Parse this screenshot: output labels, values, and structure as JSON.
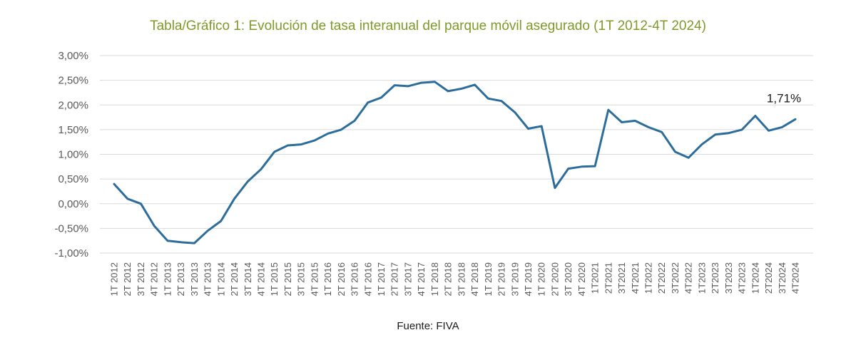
{
  "title": "Tabla/Gráfico 1: Evolución de tasa interanual del parque móvil asegurado (1T 2012-4T 2024)",
  "source": "Fuente: FIVA",
  "colors": {
    "title": "#7e9a28",
    "line": "#2d6d9b",
    "grid": "#d9d9d9",
    "axis_text": "#595959",
    "annotation": "#1a1a1a",
    "footer_text": "#1a1a1a"
  },
  "chart_data": {
    "type": "line",
    "title": "Tabla/Gráfico 1: Evolución de tasa interanual del parque móvil asegurado (1T 2012-4T 2024)",
    "categories": [
      "1T 2012",
      "2T 2012",
      "3T 2012",
      "4T 2012",
      "1T 2013",
      "2T 2013",
      "3T 2013",
      "4T 2013",
      "1T 2014",
      "2T 2014",
      "3T 2014",
      "4T 2014",
      "1T 2015",
      "2T 2015",
      "3T 2015",
      "4T 2015",
      "1T 2016",
      "2T 2016",
      "3T 2016",
      "4T 2016",
      "1T 2017",
      "2T 2017",
      "3T 2017",
      "4T 2017",
      "1T 2018",
      "2T 2018",
      "3T 2018",
      "4T 2018",
      "1T 2019",
      "2T 2019",
      "3T 2019",
      "4T 2019",
      "1T 2020",
      "2T 2020",
      "3T 2020",
      "4T 2020",
      "1T2021",
      "2T2021",
      "3T2021",
      "4T2021",
      "1T2022",
      "2T2022",
      "3T2022",
      "4T2022",
      "1T2023",
      "2T2023",
      "3T2023",
      "4T2023",
      "1T2024",
      "2T2024",
      "3T2024",
      "4T2024"
    ],
    "values": [
      0.4,
      0.1,
      0.0,
      -0.45,
      -0.75,
      -0.78,
      -0.8,
      -0.55,
      -0.35,
      0.1,
      0.45,
      0.7,
      1.05,
      1.18,
      1.2,
      1.28,
      1.42,
      1.5,
      1.68,
      2.05,
      2.15,
      2.4,
      2.38,
      2.45,
      2.47,
      2.28,
      2.33,
      2.41,
      2.13,
      2.08,
      1.85,
      1.52,
      1.57,
      0.32,
      0.71,
      0.75,
      0.76,
      1.9,
      1.65,
      1.68,
      1.55,
      1.45,
      1.05,
      0.93,
      1.2,
      1.4,
      1.43,
      1.5,
      1.78,
      1.48,
      1.55,
      1.71
    ],
    "xlabel": "",
    "ylabel": "",
    "ylim": [
      -1.0,
      3.0
    ],
    "ytick_step": 0.5,
    "ytick_labels": [
      "3,00%",
      "2,50%",
      "2,00%",
      "1,50%",
      "1,00%",
      "0,50%",
      "0,00%",
      "-0,50%",
      "-1,00%"
    ],
    "grid": true,
    "legend": "none",
    "annotation": {
      "text": "1,71%",
      "point_index": 51
    }
  }
}
